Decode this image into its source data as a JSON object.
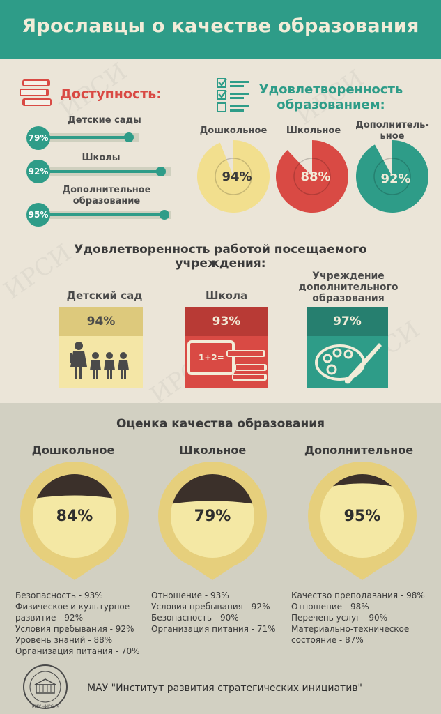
{
  "header": {
    "title": "Ярославцы о качестве образования"
  },
  "watermark": "ИРСИ",
  "access": {
    "title": "Доступность:",
    "items": [
      {
        "label": "Детские сады",
        "pct": "79%",
        "value": 79
      },
      {
        "label": "Школы",
        "pct": "92%",
        "value": 92
      },
      {
        "label": "Дополнительное образование",
        "pct": "95%",
        "value": 95
      }
    ]
  },
  "satisfaction": {
    "title_line1": "Удовлетворенность",
    "title_line2": "образованием:",
    "items": [
      {
        "label": "Дошкольное",
        "pct": "94%",
        "value": 94,
        "color": "#f2df8e"
      },
      {
        "label": "Школьное",
        "pct": "88%",
        "value": 88,
        "color": "#d94a44"
      },
      {
        "label_line1": "Дополнитель-",
        "label_line2": "ьное",
        "pct": "92%",
        "value": 92,
        "color": "#2e9c88"
      }
    ]
  },
  "institution": {
    "title_line1": "Удовлетворенность работой посещаемого",
    "title_line2": "учреждения:",
    "items": [
      {
        "label": "Детский сад",
        "pct": "94%",
        "color": "#f2df8e",
        "head_color": "#ddc97c"
      },
      {
        "label": "Школа",
        "pct": "93%",
        "color": "#d94a44",
        "head_color": "#b83a35",
        "board_text": "1+2="
      },
      {
        "label_line1": "Учреждение",
        "label_line2": "дополнительного",
        "label_line3": "образования",
        "pct": "97%",
        "color": "#2e9c88",
        "head_color": "#267f6f"
      }
    ]
  },
  "quality": {
    "title": "Оценка качества образования",
    "items": [
      {
        "label": "Дошкольное",
        "pct": "84%",
        "value": 84,
        "list": [
          "Безопасность - 93%",
          "Физическое и культурное",
          "развитие - 92%",
          "Условия пребывания - 92%",
          "Уровень знаний - 88%",
          "Организация питания - 70%"
        ]
      },
      {
        "label": "Школьное",
        "pct": "79%",
        "value": 79,
        "list": [
          "Отношение - 93%",
          "Условия пребывания - 92%",
          "Безопасность - 90%",
          "Организация питания - 71%"
        ]
      },
      {
        "label": "Дополнительное",
        "pct": "95%",
        "value": 95,
        "list": [
          "Качество преподавания - 98%",
          "Отношение - 98%",
          "Перечень услуг - 90%",
          "Материально-техническое",
          "состояние - 87%"
        ]
      }
    ]
  },
  "footer": {
    "text": "МАУ \"Институт развития стратегических инициатив\"",
    "logo_text": "МАУ «ИРСИ»"
  }
}
